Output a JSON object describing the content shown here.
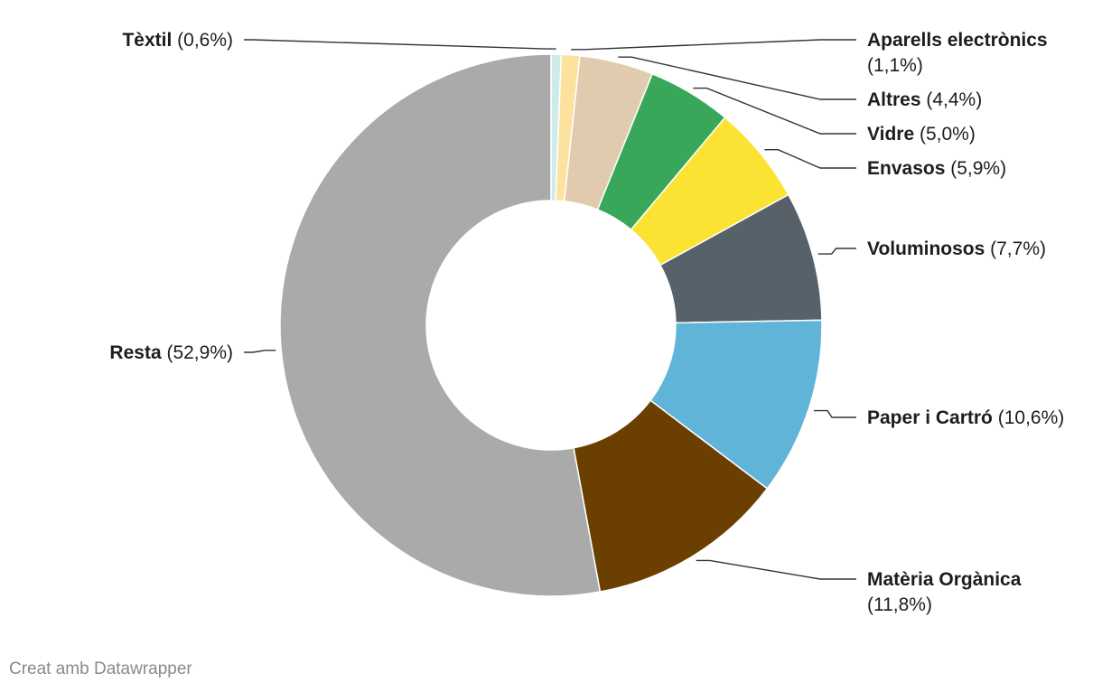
{
  "chart_data": {
    "type": "donut",
    "slices": [
      {
        "label": "Tèxtil",
        "value": 0.6,
        "display": "(0,6%)",
        "color": "#cdebe8"
      },
      {
        "label": "Aparells electrònics",
        "value": 1.1,
        "display": "(1,1%)",
        "color": "#fde29d"
      },
      {
        "label": "Altres",
        "value": 4.4,
        "display": "(4,4%)",
        "color": "#e0cbae"
      },
      {
        "label": "Vidre",
        "value": 5.0,
        "display": "(5,0%)",
        "color": "#39a75a"
      },
      {
        "label": "Envasos",
        "value": 5.9,
        "display": "(5,9%)",
        "color": "#fbe333"
      },
      {
        "label": "Voluminosos",
        "value": 7.7,
        "display": "(7,7%)",
        "color": "#56616a"
      },
      {
        "label": "Paper i Cartró",
        "value": 10.6,
        "display": "(10,6%)",
        "color": "#60b4d8"
      },
      {
        "label": "Matèria Orgànica",
        "value": 11.8,
        "display": "(11,8%)",
        "color": "#6b3f00"
      },
      {
        "label": "Resta",
        "value": 52.9,
        "display": "(52,9%)",
        "color": "#aaaaaa"
      }
    ]
  },
  "footer": {
    "credit": "Creat amb Datawrapper"
  }
}
